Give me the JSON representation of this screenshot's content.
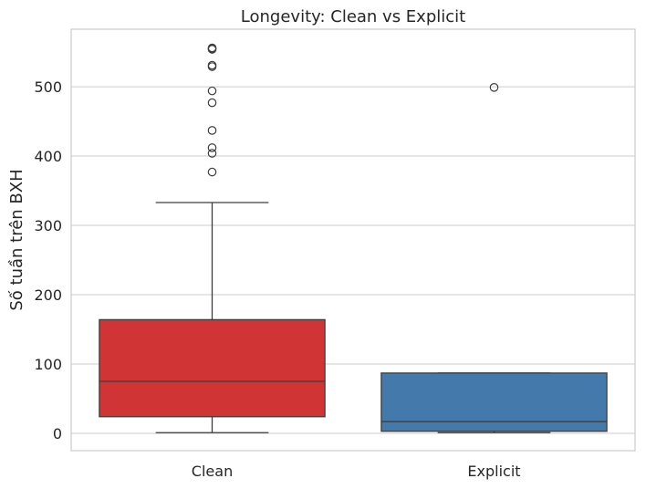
{
  "chart_data": {
    "type": "box",
    "title": "Longevity: Clean vs Explicit",
    "xlabel": "",
    "ylabel": "Số tuần trên BXH",
    "ylim": [
      -25,
      583
    ],
    "yticks": [
      0,
      100,
      200,
      300,
      400,
      500
    ],
    "ytick_labels": [
      "0",
      "100",
      "200",
      "300",
      "400",
      "500"
    ],
    "grid": true,
    "categories": [
      "Clean",
      "Explicit"
    ],
    "boxes": [
      {
        "category": "Clean",
        "color": "#d03434",
        "whisker_low": 1,
        "q1": 24,
        "median": 75,
        "q3": 164,
        "whisker_high": 333,
        "outliers": [
          377,
          404,
          412,
          437,
          477,
          494,
          529,
          531,
          554,
          555,
          556
        ]
      },
      {
        "category": "Explicit",
        "color": "#447aab",
        "whisker_low": 1,
        "q1": 3,
        "median": 17,
        "q3": 87,
        "whisker_high": 87,
        "outliers": [
          499
        ]
      }
    ]
  }
}
